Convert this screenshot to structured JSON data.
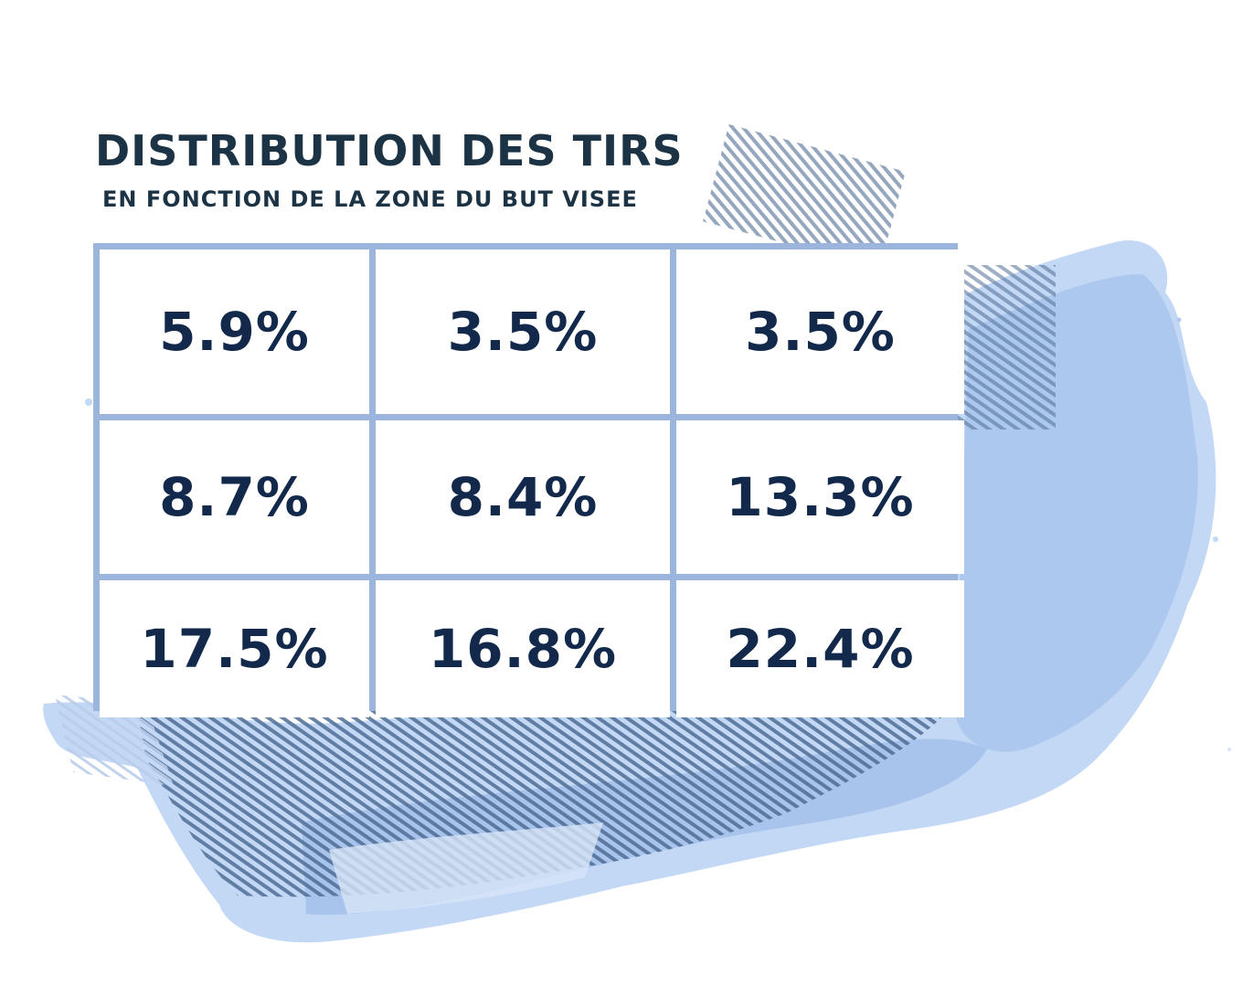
{
  "chart_data": {
    "type": "table",
    "title": "DISTRIBUTION DES TIRS",
    "subtitle": "EN FONCTION DE LA ZONE DU BUT VISEE",
    "rows": [
      [
        "5.9%",
        "3.5%",
        "3.5%"
      ],
      [
        "8.7%",
        "8.4%",
        "13.3%"
      ],
      [
        "17.5%",
        "16.8%",
        "22.4%"
      ]
    ],
    "values": [
      [
        5.9,
        3.5,
        3.5
      ],
      [
        8.7,
        8.4,
        13.3
      ],
      [
        17.5,
        16.8,
        22.4
      ]
    ],
    "unit": "%"
  },
  "colors": {
    "title": "#1b3345",
    "cell_text": "#13294b",
    "grid_border": "#9bb5dc",
    "watercolor_light": "#c3d8f5",
    "watercolor_mid": "#a9c4ec",
    "hatch": "#4f6d94"
  }
}
